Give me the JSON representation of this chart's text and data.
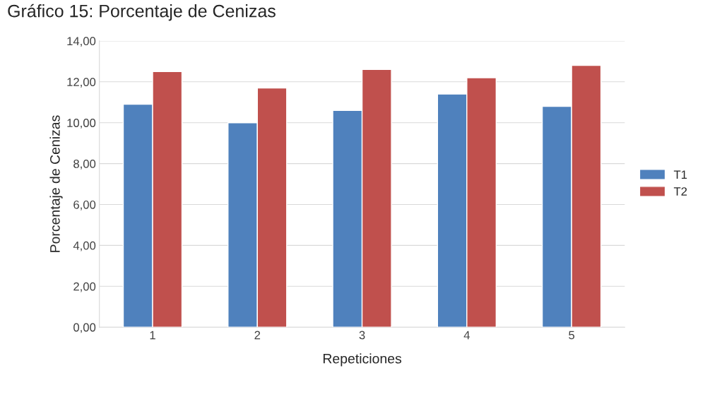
{
  "chart_data": {
    "type": "bar",
    "title": "Gráfico 15: Porcentaje de Cenizas",
    "xlabel": "Repeticiones",
    "ylabel": "Porcentaje de Cenizas",
    "categories": [
      "1",
      "2",
      "3",
      "4",
      "5"
    ],
    "series": [
      {
        "name": "T1",
        "color": "#4f81bd",
        "values": [
          10.9,
          10.0,
          10.6,
          11.4,
          10.8
        ]
      },
      {
        "name": "T2",
        "color": "#c0504d",
        "values": [
          12.5,
          11.7,
          12.6,
          12.2,
          12.8
        ]
      }
    ],
    "ylim": [
      0,
      14
    ],
    "yticks": [
      {
        "value": 0,
        "label": "0,00"
      },
      {
        "value": 2,
        "label": "2,00"
      },
      {
        "value": 4,
        "label": "4,00"
      },
      {
        "value": 6,
        "label": "6,00"
      },
      {
        "value": 8,
        "label": "8,00"
      },
      {
        "value": 10,
        "label": "10,00"
      },
      {
        "value": 12,
        "label": "12,00"
      },
      {
        "value": 14,
        "label": "14,00"
      }
    ],
    "grid": "y",
    "legend": "right"
  }
}
